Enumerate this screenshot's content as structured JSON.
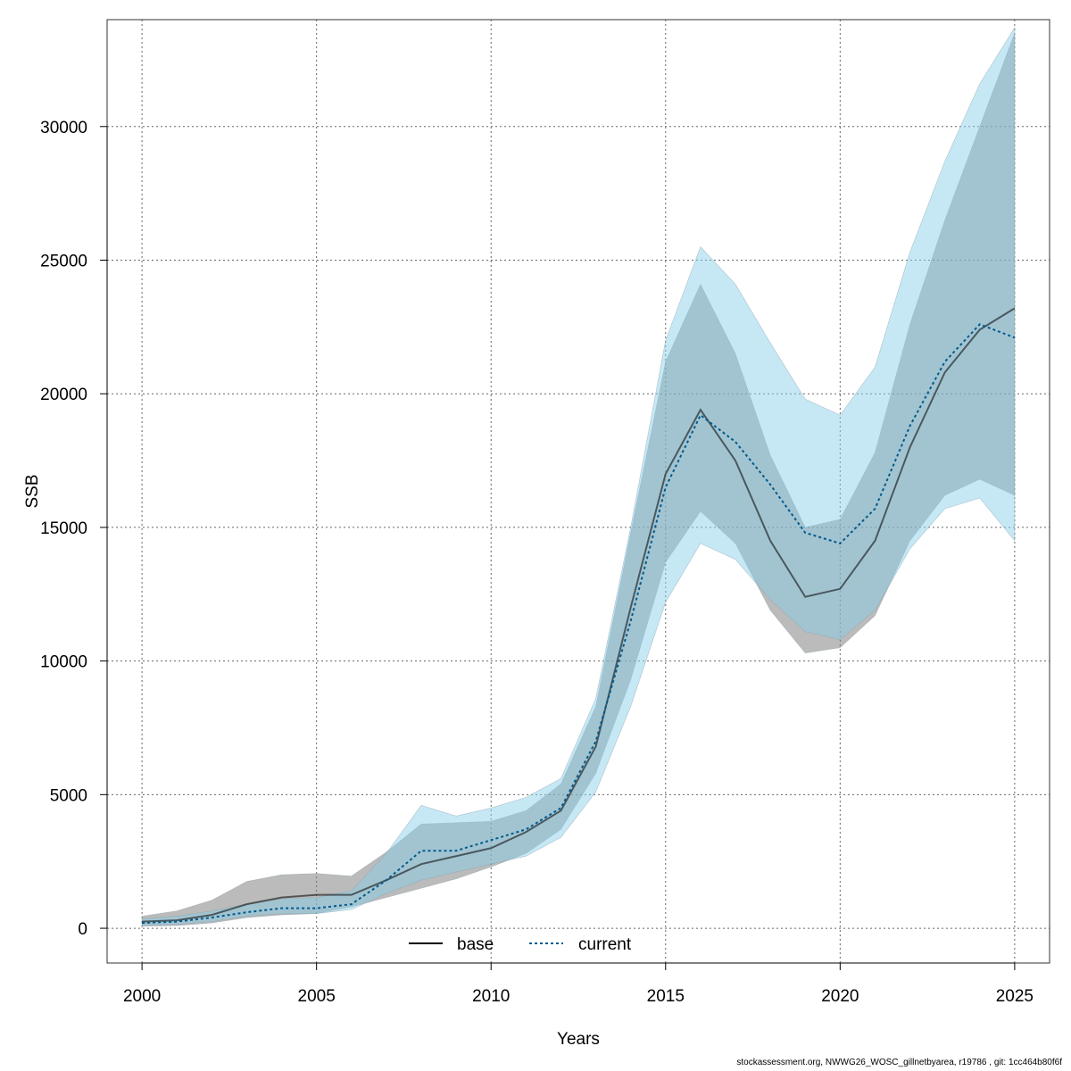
{
  "chart_data": {
    "type": "line",
    "xlabel": "Years",
    "ylabel": "SSB",
    "xlim": [
      1999,
      2026
    ],
    "ylim": [
      -1300,
      34000
    ],
    "x_ticks": [
      2000,
      2005,
      2010,
      2015,
      2020,
      2025
    ],
    "y_ticks": [
      0,
      5000,
      10000,
      15000,
      20000,
      25000,
      30000
    ],
    "grid": true,
    "legend_position": "bottom",
    "x": [
      2000,
      2001,
      2002,
      2003,
      2004,
      2005,
      2006,
      2007,
      2008,
      2009,
      2010,
      2011,
      2012,
      2013,
      2014,
      2015,
      2016,
      2017,
      2018,
      2019,
      2020,
      2021,
      2022,
      2023,
      2024,
      2025
    ],
    "series": [
      {
        "name": "base",
        "color": "#000000",
        "fill": "#777777",
        "linestyle": "solid",
        "values": [
          250,
          300,
          500,
          900,
          1150,
          1250,
          1250,
          1800,
          2400,
          2700,
          3000,
          3600,
          4400,
          6800,
          12000,
          17000,
          19400,
          17500,
          14500,
          12400,
          12700,
          14500,
          18000,
          20800,
          22400,
          23200
        ],
        "lower": [
          80,
          100,
          200,
          400,
          500,
          550,
          800,
          1150,
          1500,
          1850,
          2300,
          2800,
          3700,
          5800,
          9300,
          13700,
          15600,
          14400,
          11900,
          10300,
          10500,
          11700,
          14500,
          16200,
          16800,
          16200
        ],
        "upper": [
          450,
          650,
          1050,
          1750,
          2000,
          2050,
          1950,
          2850,
          3900,
          3950,
          4000,
          4400,
          5400,
          8300,
          14800,
          21200,
          24100,
          21500,
          17700,
          15000,
          15300,
          17800,
          22600,
          26500,
          30000,
          33500
        ]
      },
      {
        "name": "current",
        "color": "#005a8c",
        "fill": "#87ceeb",
        "linestyle": "dotted",
        "values": [
          200,
          250,
          400,
          600,
          750,
          750,
          900,
          1800,
          2900,
          2900,
          3300,
          3700,
          4500,
          7000,
          11500,
          16500,
          19200,
          18200,
          16600,
          14800,
          14400,
          15700,
          18800,
          21200,
          22600,
          22100
        ],
        "lower": [
          100,
          150,
          250,
          450,
          550,
          550,
          700,
          1300,
          1800,
          2100,
          2400,
          2700,
          3400,
          5100,
          8300,
          12200,
          14400,
          13800,
          12300,
          11100,
          10800,
          11900,
          14200,
          15700,
          16100,
          14500
        ],
        "upper": [
          350,
          450,
          650,
          900,
          1100,
          1150,
          1400,
          2800,
          4600,
          4200,
          4500,
          4900,
          5600,
          8600,
          15000,
          22000,
          25500,
          24100,
          21900,
          19800,
          19200,
          21000,
          25300,
          28700,
          31600,
          33700
        ]
      }
    ]
  },
  "footer_text": "stockassessment.org, NWWG26_WOSC_gillnetbyarea, r19786 , git: 1cc464b80f6f"
}
